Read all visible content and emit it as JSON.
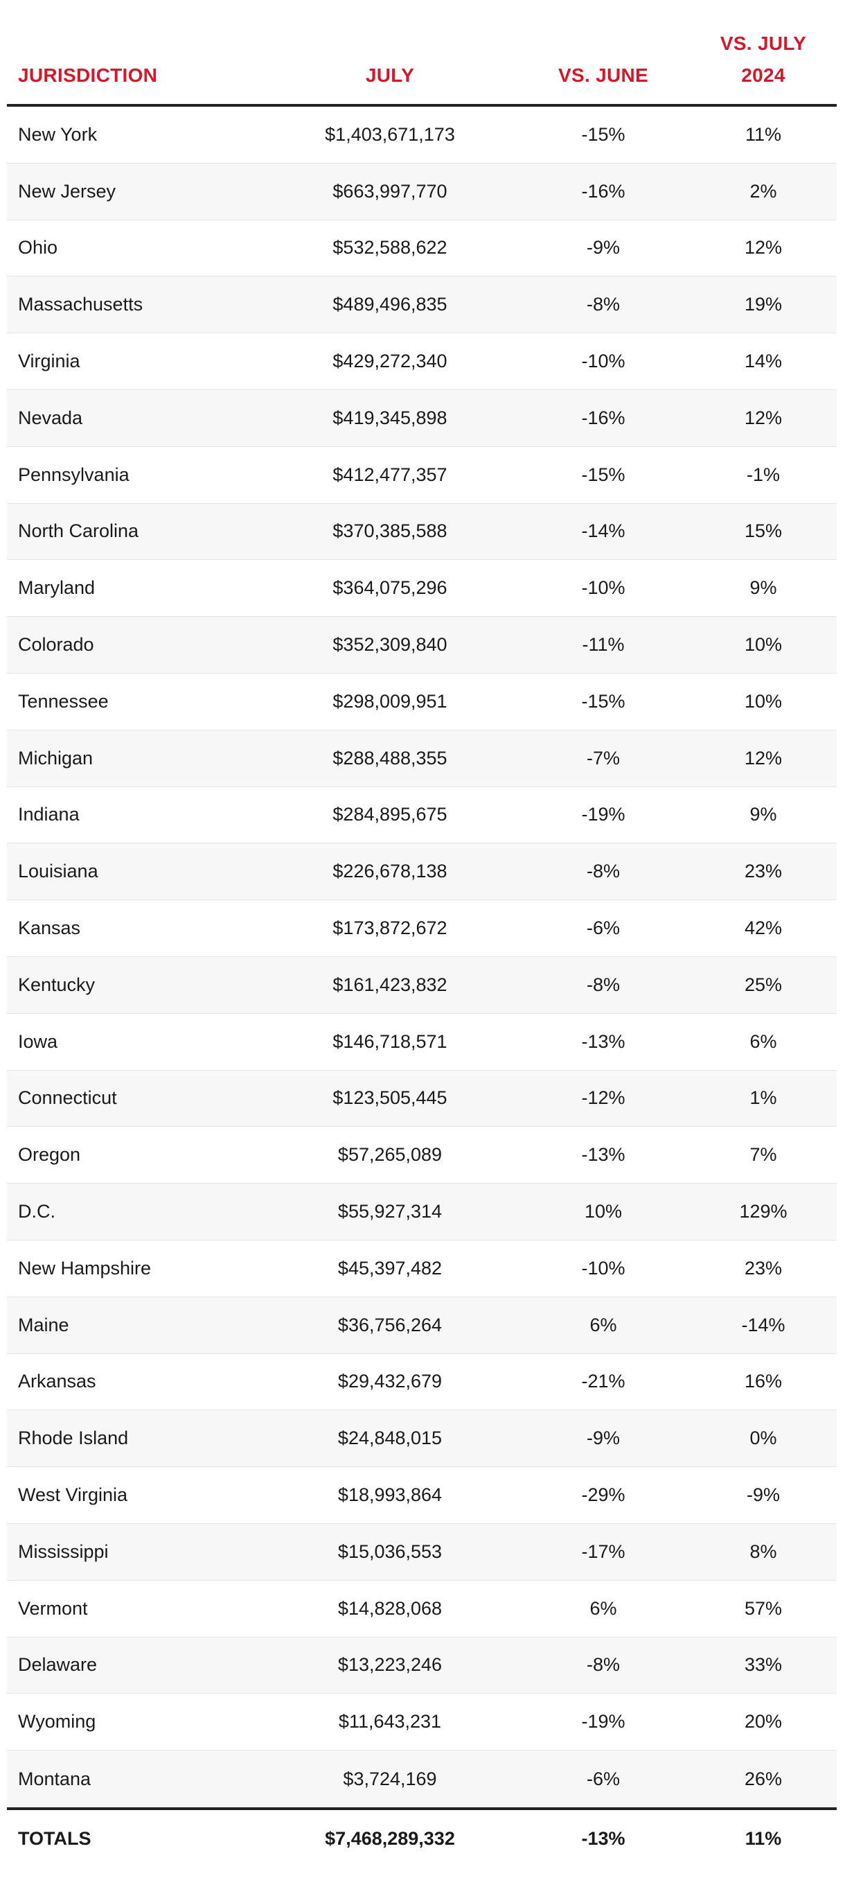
{
  "table": {
    "headers": {
      "jurisdiction": "JURISDICTION",
      "july": "JULY",
      "vs_june": "VS. JUNE",
      "vs_july_2024": "VS. JULY\n2024"
    },
    "rows": [
      {
        "jurisdiction": "New York",
        "july": "$1,403,671,173",
        "vs_june": "-15%",
        "vs_july_2024": "11%"
      },
      {
        "jurisdiction": "New Jersey",
        "july": "$663,997,770",
        "vs_june": "-16%",
        "vs_july_2024": "2%"
      },
      {
        "jurisdiction": "Ohio",
        "july": "$532,588,622",
        "vs_june": "-9%",
        "vs_july_2024": "12%"
      },
      {
        "jurisdiction": "Massachusetts",
        "july": "$489,496,835",
        "vs_june": "-8%",
        "vs_july_2024": "19%"
      },
      {
        "jurisdiction": "Virginia",
        "july": "$429,272,340",
        "vs_june": "-10%",
        "vs_july_2024": "14%"
      },
      {
        "jurisdiction": "Nevada",
        "july": "$419,345,898",
        "vs_june": "-16%",
        "vs_july_2024": "12%"
      },
      {
        "jurisdiction": "Pennsylvania",
        "july": "$412,477,357",
        "vs_june": "-15%",
        "vs_july_2024": "-1%"
      },
      {
        "jurisdiction": "North Carolina",
        "july": "$370,385,588",
        "vs_june": "-14%",
        "vs_july_2024": "15%"
      },
      {
        "jurisdiction": "Maryland",
        "july": "$364,075,296",
        "vs_june": "-10%",
        "vs_july_2024": "9%"
      },
      {
        "jurisdiction": "Colorado",
        "july": "$352,309,840",
        "vs_june": "-11%",
        "vs_july_2024": "10%"
      },
      {
        "jurisdiction": "Tennessee",
        "july": "$298,009,951",
        "vs_june": "-15%",
        "vs_july_2024": "10%"
      },
      {
        "jurisdiction": "Michigan",
        "july": "$288,488,355",
        "vs_june": "-7%",
        "vs_july_2024": "12%"
      },
      {
        "jurisdiction": "Indiana",
        "july": "$284,895,675",
        "vs_june": "-19%",
        "vs_july_2024": "9%"
      },
      {
        "jurisdiction": "Louisiana",
        "july": "$226,678,138",
        "vs_june": "-8%",
        "vs_july_2024": "23%"
      },
      {
        "jurisdiction": "Kansas",
        "july": "$173,872,672",
        "vs_june": "-6%",
        "vs_july_2024": "42%"
      },
      {
        "jurisdiction": "Kentucky",
        "july": "$161,423,832",
        "vs_june": "-8%",
        "vs_july_2024": "25%"
      },
      {
        "jurisdiction": "Iowa",
        "july": "$146,718,571",
        "vs_june": "-13%",
        "vs_july_2024": "6%"
      },
      {
        "jurisdiction": "Connecticut",
        "july": "$123,505,445",
        "vs_june": "-12%",
        "vs_july_2024": "1%"
      },
      {
        "jurisdiction": "Oregon",
        "july": "$57,265,089",
        "vs_june": "-13%",
        "vs_july_2024": "7%"
      },
      {
        "jurisdiction": "D.C.",
        "july": "$55,927,314",
        "vs_june": "10%",
        "vs_july_2024": "129%"
      },
      {
        "jurisdiction": "New Hampshire",
        "july": "$45,397,482",
        "vs_june": "-10%",
        "vs_july_2024": "23%"
      },
      {
        "jurisdiction": "Maine",
        "july": "$36,756,264",
        "vs_june": "6%",
        "vs_july_2024": "-14%"
      },
      {
        "jurisdiction": "Arkansas",
        "july": "$29,432,679",
        "vs_june": "-21%",
        "vs_july_2024": "16%"
      },
      {
        "jurisdiction": "Rhode Island",
        "july": "$24,848,015",
        "vs_june": "-9%",
        "vs_july_2024": "0%"
      },
      {
        "jurisdiction": "West Virginia",
        "july": "$18,993,864",
        "vs_june": "-29%",
        "vs_july_2024": "-9%"
      },
      {
        "jurisdiction": "Mississippi",
        "july": "$15,036,553",
        "vs_june": "-17%",
        "vs_july_2024": "8%"
      },
      {
        "jurisdiction": "Vermont",
        "july": "$14,828,068",
        "vs_june": "6%",
        "vs_july_2024": "57%"
      },
      {
        "jurisdiction": "Delaware",
        "july": "$13,223,246",
        "vs_june": "-8%",
        "vs_july_2024": "33%"
      },
      {
        "jurisdiction": "Wyoming",
        "july": "$11,643,231",
        "vs_june": "-19%",
        "vs_july_2024": "20%"
      },
      {
        "jurisdiction": "Montana",
        "july": "$3,724,169",
        "vs_june": "-6%",
        "vs_july_2024": "26%"
      }
    ],
    "totals": {
      "jurisdiction": "TOTALS",
      "july": "$7,468,289,332",
      "vs_june": "-13%",
      "vs_july_2024": "11%"
    }
  },
  "colors": {
    "header_text": "#d3182a",
    "rule": "#222222",
    "stripe": "#f7f7f7"
  }
}
